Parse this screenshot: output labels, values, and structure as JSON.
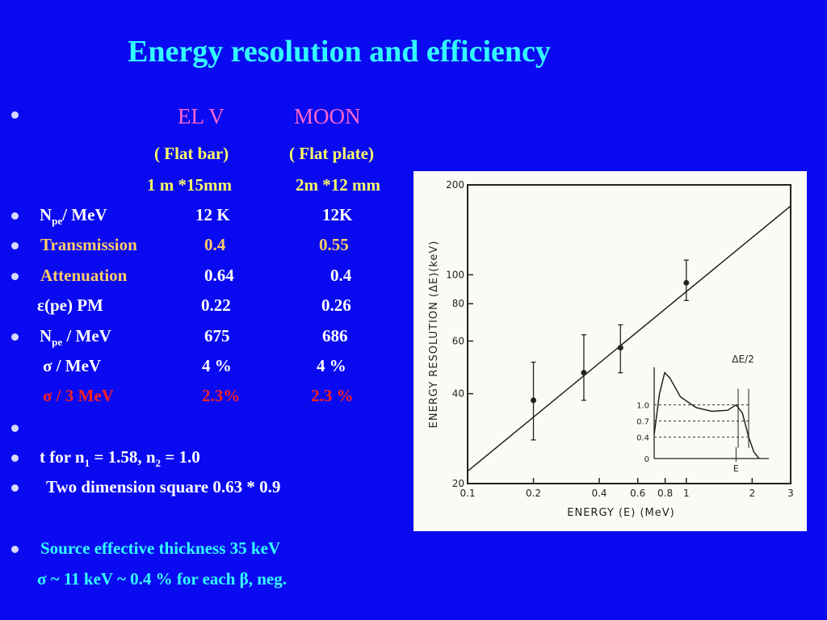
{
  "title": "Energy resolution and efficiency",
  "header": {
    "col1": "EL V",
    "col2": "MOON",
    "col1_sub": "( Flat bar)",
    "col2_sub": "( Flat plate)",
    "col1_dim": "1 m *15mm",
    "col2_dim": "2m *12 mm"
  },
  "rows": {
    "npe1": {
      "sym": "N",
      "sub": "pe",
      "label": "/ MeV",
      "v1": "12 K",
      "v2": "12K"
    },
    "transmission": {
      "label": "Transmission",
      "v1": "0.4",
      "v2": "0.55"
    },
    "attenuation": {
      "label": "Attenuation",
      "v1": "0.64",
      "v2": "0.4"
    },
    "eps": {
      "label": "ε(pe) PM",
      "v1": "0.22",
      "v2": "0.26"
    },
    "npe2": {
      "sym": "N",
      "sub": "pe",
      "label": " / MeV",
      "v1": "675",
      "v2": "686"
    },
    "sigma": {
      "label": "σ / MeV",
      "v1": "4 %",
      "v2": "4 %"
    },
    "sigma3": {
      "label": "σ / 3 MeV",
      "v1": "2.3%",
      "v2": "2.3 %"
    }
  },
  "notes": {
    "t_line_a": "t  for  n",
    "t_sub1": "1",
    "t_line_b": " = 1.58, n",
    "t_sub2": "2",
    "t_line_c": " = 1.0",
    "two_dim": "Two dimension square  0.63 * 0.9",
    "source": "Source effective  thickness  35 keV",
    "sigma_line": "σ ~ 11 keV ~ 0.4 %   for each β, neg."
  },
  "colors": {
    "background": "#0a0af0",
    "title": "#33ffff",
    "header": "#ff66cc",
    "subheader": "#ffff66",
    "labels": "#ffcc66",
    "highlight": "#ff2020"
  },
  "chart_data": {
    "type": "scatter",
    "xlabel": "ENERGY (E) (MeV)",
    "ylabel": "ENERGY  RESOLUTION (ΔE)(keV)",
    "xscale": "log",
    "yscale": "log",
    "xlim": [
      0.1,
      3
    ],
    "ylim": [
      20,
      200
    ],
    "xticks": [
      0.1,
      0.2,
      0.4,
      0.6,
      0.8,
      1,
      2,
      3
    ],
    "xtick_labels": [
      "0.1",
      "0.2",
      "0.4",
      "0.6",
      "0.8",
      "1",
      "2",
      "3"
    ],
    "yticks": [
      20,
      40,
      60,
      80,
      100,
      200
    ],
    "ytick_labels": [
      "20",
      "40",
      "60",
      "80",
      "100",
      "200"
    ],
    "points": [
      {
        "x": 0.2,
        "y": 38,
        "ylo": 28,
        "yhi": 51
      },
      {
        "x": 0.34,
        "y": 47,
        "ylo": 38,
        "yhi": 63
      },
      {
        "x": 0.5,
        "y": 57,
        "ylo": 47,
        "yhi": 68
      },
      {
        "x": 1.0,
        "y": 94,
        "ylo": 82,
        "yhi": 112
      }
    ],
    "fit_line": [
      {
        "x": 0.1,
        "y": 22
      },
      {
        "x": 3,
        "y": 170
      }
    ],
    "inset": {
      "type": "line",
      "ytick_labels": [
        "0",
        "0.4",
        "0.7",
        "1.0"
      ],
      "curve": [
        {
          "x": 0.0,
          "y": 0.45
        },
        {
          "x": 0.05,
          "y": 1.2
        },
        {
          "x": 0.1,
          "y": 1.6
        },
        {
          "x": 0.15,
          "y": 1.5
        },
        {
          "x": 0.25,
          "y": 1.15
        },
        {
          "x": 0.4,
          "y": 0.95
        },
        {
          "x": 0.55,
          "y": 0.88
        },
        {
          "x": 0.7,
          "y": 0.9
        },
        {
          "x": 0.78,
          "y": 1.0
        },
        {
          "x": 0.84,
          "y": 0.85
        },
        {
          "x": 0.9,
          "y": 0.4
        },
        {
          "x": 0.95,
          "y": 0.12
        },
        {
          "x": 1.0,
          "y": 0.0
        }
      ],
      "annotation": "ΔE/2",
      "marker": "E"
    }
  }
}
